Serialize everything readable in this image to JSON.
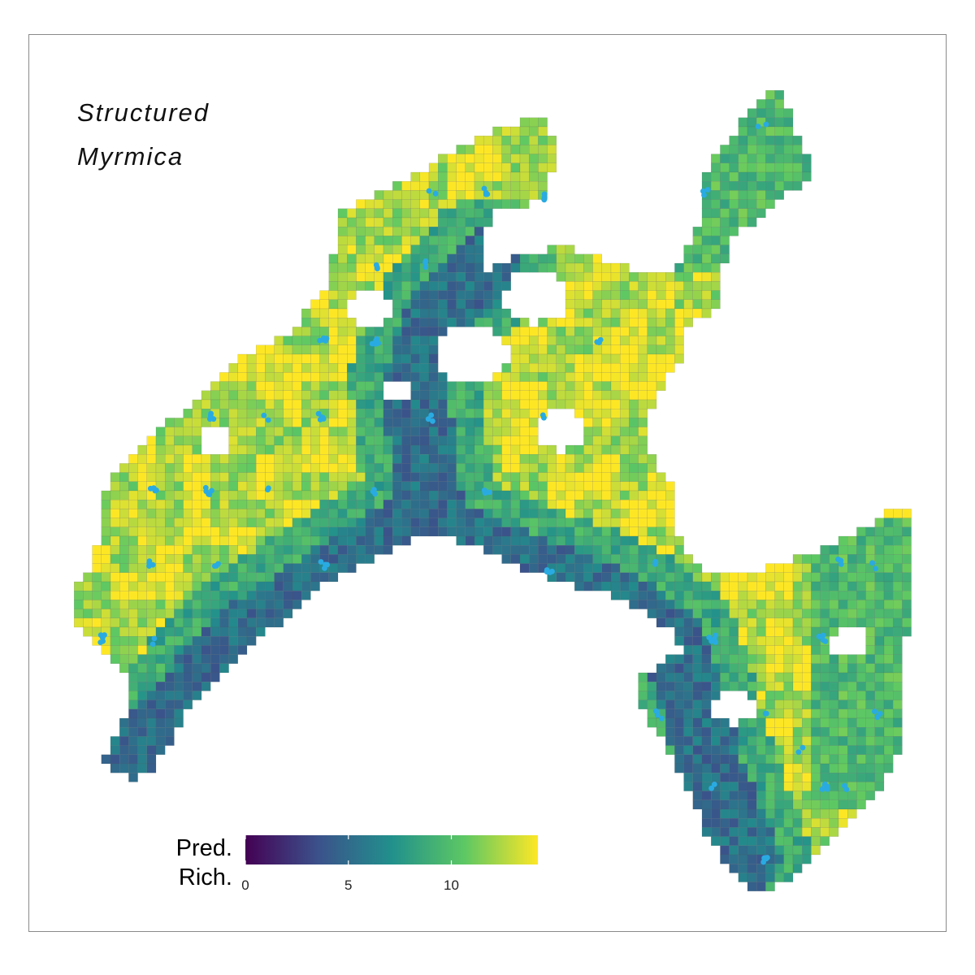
{
  "title": {
    "line1": "Structured",
    "line2": "Myrmica"
  },
  "legend": {
    "title_line1": "Pred.",
    "title_line2": "Rich.",
    "min": 0,
    "max": 14.2,
    "ticks": [
      "0",
      "5",
      "10"
    ],
    "tick_values": [
      0,
      5,
      10
    ],
    "palette": "viridis",
    "colors": [
      "#440154",
      "#3b528b",
      "#21908c",
      "#5dc863",
      "#fde725"
    ]
  },
  "colors": {
    "occurrence_points": "#29abe2",
    "frame": "#8a8a8a"
  },
  "chart_data": {
    "type": "heatmap",
    "variable": "predicted richness",
    "color_scale": "viridis",
    "value_range": [
      0,
      14.2
    ],
    "legend_placement": "bottom-left",
    "overlay": "occurrence points"
  }
}
